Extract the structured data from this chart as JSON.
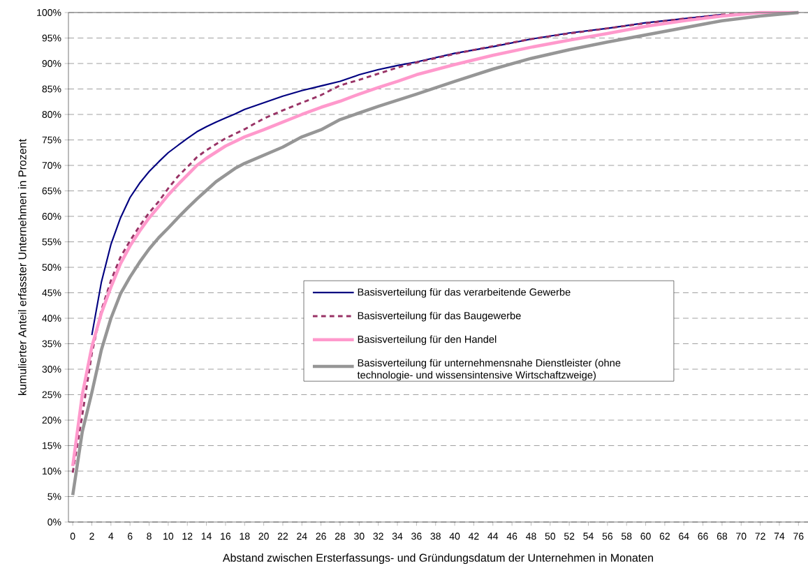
{
  "chart_data": {
    "type": "line",
    "xlabel": "Abstand zwischen Ersterfassungs- und Gründungsdatum der Unternehmen in Monaten",
    "ylabel": "kumulierter Anteil erfasster Unternehmen in Prozent",
    "xlim": [
      -0.45,
      77
    ],
    "ylim": [
      0,
      100
    ],
    "xticks": [
      0,
      2,
      4,
      6,
      8,
      10,
      12,
      14,
      16,
      18,
      20,
      22,
      24,
      26,
      28,
      30,
      32,
      34,
      36,
      38,
      40,
      42,
      44,
      46,
      48,
      50,
      52,
      54,
      56,
      58,
      60,
      62,
      64,
      66,
      68,
      70,
      72,
      74,
      76
    ],
    "yticks": [
      {
        "value": 0,
        "label": "0%"
      },
      {
        "value": 5,
        "label": "5%"
      },
      {
        "value": 10,
        "label": "10%"
      },
      {
        "value": 15,
        "label": "15%"
      },
      {
        "value": 20,
        "label": "20%"
      },
      {
        "value": 25,
        "label": "25%"
      },
      {
        "value": 30,
        "label": "30%"
      },
      {
        "value": 35,
        "label": "35%"
      },
      {
        "value": 40,
        "label": "40%"
      },
      {
        "value": 45,
        "label": "45%"
      },
      {
        "value": 50,
        "label": "50%"
      },
      {
        "value": 55,
        "label": "55%"
      },
      {
        "value": 60,
        "label": "60%"
      },
      {
        "value": 65,
        "label": "65%"
      },
      {
        "value": 70,
        "label": "70%"
      },
      {
        "value": 75,
        "label": "75%"
      },
      {
        "value": 80,
        "label": "80%"
      },
      {
        "value": 85,
        "label": "85%"
      },
      {
        "value": 90,
        "label": "90%"
      },
      {
        "value": 95,
        "label": "95%"
      },
      {
        "value": 100,
        "label": "100%"
      }
    ],
    "grid": "y",
    "legend": "right",
    "series": [
      {
        "name": "Basisverteilung für das verarbeitende Gewerbe",
        "color": "#000080",
        "line_style": "solid",
        "x": [
          2,
          3,
          4,
          5,
          6,
          7,
          8,
          9,
          10,
          11,
          12,
          13,
          14,
          15,
          16,
          17,
          18,
          20,
          22,
          24,
          26,
          28,
          30,
          32,
          34,
          36,
          40,
          44,
          48,
          52,
          56,
          60,
          64,
          68
        ],
        "values": [
          36.7,
          47.1,
          54.5,
          59.7,
          63.7,
          66.5,
          68.8,
          70.7,
          72.5,
          73.9,
          75.3,
          76.6,
          77.6,
          78.5,
          79.3,
          80.1,
          81,
          82.3,
          83.6,
          84.7,
          85.6,
          86.5,
          87.8,
          88.8,
          89.6,
          90.3,
          92,
          93.3,
          94.8,
          96,
          96.9,
          98,
          98.8,
          99.6
        ]
      },
      {
        "name": "Basisverteilung für das Baugewerbe",
        "color": "#993366",
        "line_style": "dashed",
        "x": [
          0,
          1,
          2,
          3,
          4,
          5,
          6,
          7,
          8,
          9,
          10,
          11,
          12,
          13,
          14,
          16,
          18,
          20,
          22,
          24,
          26,
          28,
          30,
          32,
          34,
          36,
          40,
          44,
          48,
          52,
          56,
          60,
          64,
          68,
          72,
          76
        ],
        "values": [
          9.7,
          21,
          33.1,
          41.6,
          47.4,
          52,
          55.2,
          58.1,
          60.7,
          62.9,
          65.5,
          67.8,
          69.7,
          71.6,
          73,
          75.3,
          77.1,
          79.2,
          80.8,
          82.3,
          83.8,
          85.7,
          86.8,
          88,
          89.2,
          90.2,
          91.9,
          93.4,
          94.8,
          95.9,
          96.9,
          97.9,
          98.8,
          99.6,
          100,
          100
        ]
      },
      {
        "name": "Basisverteilung für den Handel",
        "color": "#ff99cc",
        "line_style": "solid",
        "x": [
          0,
          1,
          2,
          3,
          4,
          5,
          6,
          7,
          8,
          9,
          10,
          11,
          12,
          13,
          14,
          16,
          18,
          20,
          22,
          24,
          26,
          28,
          30,
          32,
          34,
          36,
          40,
          44,
          48,
          52,
          56,
          60,
          64,
          68,
          72,
          76
        ],
        "values": [
          11,
          25,
          34.4,
          41,
          46.1,
          50.7,
          54.2,
          57.1,
          59.7,
          61.9,
          64.2,
          66.2,
          68.1,
          70,
          71.4,
          73.8,
          75.6,
          77,
          78.5,
          80,
          81.4,
          82.6,
          84,
          85.3,
          86.5,
          87.8,
          89.8,
          91.6,
          93.2,
          94.6,
          95.9,
          97.3,
          98.4,
          99.3,
          100,
          100
        ]
      },
      {
        "name": "Basisverteilung für unternehmensnahe Dienstleister (ohne technologie- und wissensintensive Wirtschaftzweige)",
        "color": "#969696",
        "line_style": "solid",
        "x": [
          0,
          1,
          2,
          3,
          4,
          5,
          6,
          7,
          8,
          9,
          10,
          11,
          12,
          13,
          14,
          15,
          16,
          17,
          18,
          20,
          22,
          24,
          26,
          28,
          30,
          32,
          34,
          36,
          40,
          44,
          48,
          52,
          56,
          60,
          64,
          68,
          72,
          76
        ],
        "values": [
          5.3,
          17.7,
          25.4,
          33.8,
          40,
          44.8,
          48.1,
          51,
          53.6,
          55.8,
          57.7,
          59.7,
          61.6,
          63.4,
          65.1,
          66.8,
          68.1,
          69.4,
          70.4,
          72,
          73.6,
          75.6,
          77,
          79,
          80.3,
          81.6,
          82.8,
          84,
          86.5,
          88.9,
          91,
          92.7,
          94.2,
          95.6,
          97,
          98.4,
          99.3,
          100
        ]
      }
    ]
  }
}
